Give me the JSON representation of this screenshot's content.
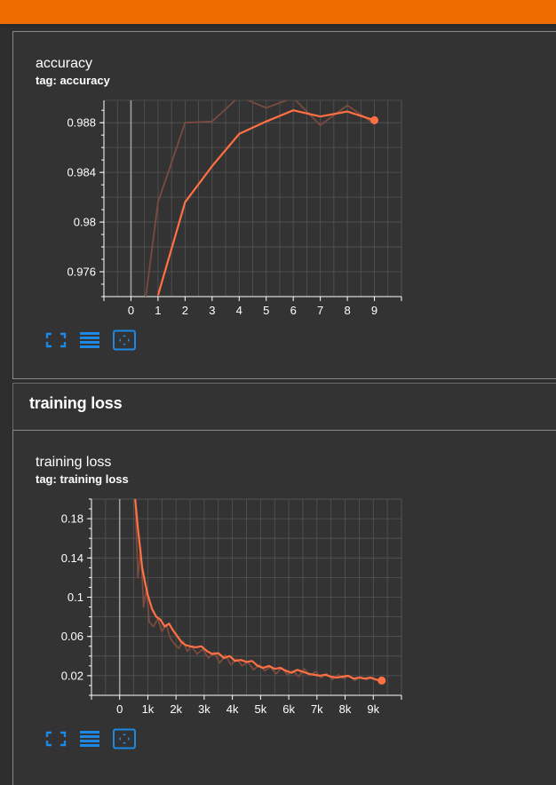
{
  "colors": {
    "accent_bar": "#ef6c00",
    "series_smoothed": "#ff7043",
    "series_raw": "#7a4a3f",
    "icon": "#1e88e5",
    "grid": "#555555"
  },
  "cards": {
    "accuracy": {
      "title": "accuracy",
      "tag": "tag: accuracy"
    },
    "training_loss": {
      "title": "training loss",
      "tag": "tag: training loss"
    }
  },
  "section": {
    "title": "training loss"
  },
  "toolbar": {
    "icons": [
      "fullscreen-icon",
      "data-table-icon",
      "fit-domain-icon"
    ]
  },
  "chart_data": [
    {
      "type": "line",
      "title": "accuracy",
      "xlabel": "",
      "ylabel": "",
      "xlim": [
        -1,
        10
      ],
      "ylim": [
        0.974,
        0.9898
      ],
      "x_ticks": [
        0,
        1,
        2,
        3,
        4,
        5,
        6,
        7,
        8,
        9
      ],
      "y_ticks": [
        0.976,
        0.98,
        0.984,
        0.988
      ],
      "y_tick_labels": [
        "0.976",
        "0.98",
        "0.984",
        "0.988"
      ],
      "grid": true,
      "series": [
        {
          "style": "smoothed",
          "x": [
            1,
            2,
            3,
            4,
            5,
            6,
            7,
            8,
            9
          ],
          "y": [
            0.9741,
            0.9816,
            0.9845,
            0.9871,
            0.9881,
            0.989,
            0.9885,
            0.9889,
            0.9882
          ]
        },
        {
          "style": "raw",
          "x": [
            0.55,
            1,
            2,
            3,
            4,
            5,
            6,
            7,
            8,
            9
          ],
          "y": [
            0.974,
            0.9816,
            0.988,
            0.9881,
            0.9901,
            0.9892,
            0.99,
            0.9878,
            0.9894,
            0.9879
          ]
        }
      ]
    },
    {
      "type": "line",
      "title": "training loss",
      "xlabel": "",
      "ylabel": "",
      "xlim": [
        -1000,
        10000
      ],
      "ylim": [
        0,
        0.2
      ],
      "x_ticks": [
        0,
        1000,
        2000,
        3000,
        4000,
        5000,
        6000,
        7000,
        8000,
        9000
      ],
      "x_tick_labels": [
        "0",
        "1k",
        "2k",
        "3k",
        "4k",
        "5k",
        "6k",
        "7k",
        "8k",
        "9k"
      ],
      "y_ticks": [
        0.02,
        0.06,
        0.1,
        0.14,
        0.18
      ],
      "y_tick_labels": [
        "0.02",
        "0.06",
        "0.1",
        "0.14",
        "0.18"
      ],
      "grid": true,
      "series": [
        {
          "style": "smoothed",
          "x": [
            550,
            650,
            800,
            900,
            1000,
            1150,
            1300,
            1450,
            1600,
            1750,
            1900,
            2050,
            2200,
            2350,
            2500,
            2700,
            2900,
            3100,
            3300,
            3500,
            3700,
            3900,
            4100,
            4300,
            4500,
            4700,
            4900,
            5100,
            5300,
            5500,
            5700,
            5900,
            6100,
            6300,
            6500,
            6700,
            6900,
            7100,
            7300,
            7500,
            7700,
            7900,
            8100,
            8300,
            8500,
            8700,
            8900,
            9100,
            9300
          ],
          "y": [
            0.2,
            0.17,
            0.13,
            0.115,
            0.102,
            0.088,
            0.08,
            0.077,
            0.07,
            0.073,
            0.066,
            0.06,
            0.054,
            0.051,
            0.05,
            0.049,
            0.05,
            0.045,
            0.042,
            0.043,
            0.038,
            0.04,
            0.035,
            0.036,
            0.034,
            0.035,
            0.03,
            0.028,
            0.03,
            0.027,
            0.028,
            0.025,
            0.023,
            0.026,
            0.024,
            0.022,
            0.021,
            0.02,
            0.021,
            0.019,
            0.018,
            0.019,
            0.02,
            0.017,
            0.018,
            0.017,
            0.018,
            0.016,
            0.015
          ]
        },
        {
          "style": "raw",
          "x": [
            550,
            650,
            750,
            850,
            950,
            1050,
            1200,
            1350,
            1500,
            1650,
            1800,
            1950,
            2100,
            2250,
            2400,
            2550,
            2750,
            2950,
            3150,
            3350,
            3550,
            3750,
            3950,
            4150,
            4350,
            4550,
            4750,
            4950,
            5150,
            5350,
            5550,
            5750,
            5950,
            6150,
            6350,
            6550,
            6750,
            6950,
            7150,
            7350,
            7550,
            7750,
            7950,
            8150,
            8350,
            8550,
            8750,
            8950,
            9150,
            9300
          ],
          "y": [
            0.2,
            0.12,
            0.15,
            0.09,
            0.11,
            0.075,
            0.07,
            0.078,
            0.065,
            0.072,
            0.058,
            0.052,
            0.048,
            0.055,
            0.045,
            0.05,
            0.042,
            0.047,
            0.038,
            0.044,
            0.033,
            0.041,
            0.031,
            0.037,
            0.03,
            0.034,
            0.026,
            0.031,
            0.025,
            0.029,
            0.022,
            0.028,
            0.021,
            0.025,
            0.019,
            0.027,
            0.02,
            0.024,
            0.018,
            0.022,
            0.016,
            0.021,
            0.017,
            0.02,
            0.015,
            0.019,
            0.016,
            0.018,
            0.015,
            0.015
          ]
        }
      ]
    }
  ]
}
